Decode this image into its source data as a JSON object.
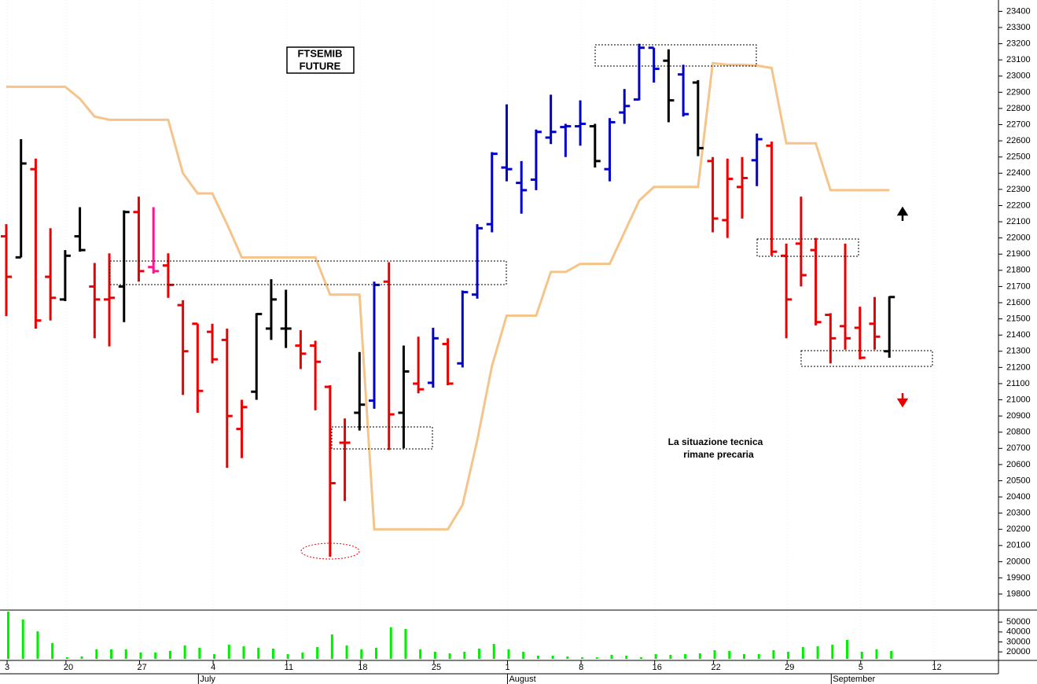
{
  "chart_data": {
    "type": "ohlc",
    "title_lines": [
      "FTSEMIB",
      "FUTURE"
    ],
    "annotation_lines": [
      "La situazione tecnica",
      "rimane precaria"
    ],
    "annotation_color": "#ee0000",
    "categories": [
      "3",
      null,
      null,
      null,
      "20",
      null,
      null,
      null,
      null,
      "27",
      null,
      null,
      null,
      null,
      "4",
      null,
      null,
      null,
      null,
      "11",
      null,
      null,
      null,
      null,
      "18",
      null,
      null,
      null,
      null,
      "25",
      null,
      null,
      null,
      null,
      "1",
      null,
      null,
      null,
      null,
      "8",
      null,
      null,
      null,
      null,
      "16",
      null,
      null,
      null,
      "22",
      null,
      null,
      null,
      null,
      "29",
      null,
      null,
      null,
      null,
      "5",
      null,
      null,
      null,
      null,
      "12"
    ],
    "month_labels": [
      null,
      null,
      null,
      null,
      null,
      null,
      null,
      null,
      null,
      null,
      null,
      null,
      null,
      "July",
      null,
      null,
      null,
      null,
      null,
      null,
      null,
      null,
      null,
      null,
      null,
      null,
      null,
      null,
      null,
      null,
      null,
      null,
      null,
      null,
      "August",
      null,
      null,
      null,
      null,
      null,
      null,
      null,
      null,
      null,
      null,
      null,
      null,
      null,
      null,
      null,
      null,
      null,
      null,
      null,
      null,
      null,
      "September",
      null,
      null,
      null,
      null,
      null,
      null,
      null
    ],
    "open": [
      22010,
      21880,
      22425,
      21760,
      21620,
      22010,
      21700,
      21620,
      21700,
      22160,
      21820,
      21830,
      21585,
      21470,
      21420,
      21370,
      20820,
      21050,
      21440,
      21440,
      21335,
      21335,
      21080,
      20735,
      20920,
      20995,
      21730,
      20920,
      21100,
      21105,
      21345,
      21225,
      21650,
      22085,
      22435,
      22340,
      22360,
      22620,
      22685,
      22690,
      22690,
      22425,
      22775,
      22855,
      23175,
      23095,
      23010,
      22960,
      22475,
      22110,
      22315,
      22480,
      22570,
      21890,
      21965,
      21925,
      21525,
      21455,
      21445,
      21470,
      21300,
      null,
      null,
      null
    ],
    "high": [
      22085,
      22610,
      22490,
      22060,
      21925,
      22190,
      21845,
      21905,
      22170,
      22255,
      22190,
      21905,
      21615,
      21470,
      21470,
      21440,
      21000,
      21535,
      21745,
      21680,
      21430,
      21365,
      21090,
      20885,
      21295,
      21730,
      21850,
      21335,
      21390,
      21445,
      21380,
      21675,
      22085,
      22530,
      22825,
      22475,
      22670,
      22885,
      22705,
      22850,
      22705,
      22740,
      22920,
      23200,
      23175,
      23165,
      23070,
      22975,
      22500,
      22490,
      22500,
      22645,
      22595,
      21965,
      22255,
      22000,
      21535,
      21965,
      21575,
      21635,
      21640,
      null,
      null,
      null
    ],
    "low": [
      21517,
      21880,
      21440,
      21490,
      21610,
      21915,
      21380,
      21330,
      21480,
      21730,
      21780,
      21630,
      21030,
      20920,
      21225,
      20580,
      20640,
      21000,
      21370,
      21320,
      21190,
      20935,
      20030,
      20375,
      20810,
      20945,
      20690,
      20700,
      21040,
      21075,
      21090,
      21200,
      21625,
      22035,
      22350,
      22150,
      22295,
      22580,
      22500,
      22570,
      22435,
      22350,
      22705,
      22850,
      22960,
      22715,
      22750,
      22505,
      22035,
      22000,
      22120,
      22320,
      21890,
      21380,
      21700,
      21460,
      21225,
      21310,
      21250,
      21310,
      21260,
      null,
      null,
      null
    ],
    "close": [
      21760,
      22460,
      21490,
      21630,
      21890,
      21925,
      21620,
      21630,
      22160,
      21795,
      21795,
      21710,
      21300,
      21055,
      21250,
      20900,
      20955,
      21530,
      21620,
      21440,
      21285,
      21235,
      20485,
      20735,
      20970,
      21710,
      20910,
      21175,
      21065,
      21380,
      21100,
      21665,
      22060,
      22520,
      22425,
      22295,
      22655,
      22655,
      22690,
      22705,
      22475,
      22715,
      22815,
      23175,
      23045,
      22850,
      22765,
      22555,
      22120,
      22365,
      22370,
      22610,
      21915,
      21620,
      21770,
      21480,
      21380,
      21380,
      21260,
      21390,
      21635,
      null,
      null,
      null
    ],
    "colors": [
      "#ee0000",
      "#000000",
      "#ee0000",
      "#ee0000",
      "#000000",
      "#000000",
      "#ee0000",
      "#ee0000",
      "#000000",
      "#ee0000",
      "#ff1493",
      "#ee0000",
      "#ee0000",
      "#ee0000",
      "#ee0000",
      "#ee0000",
      "#ee0000",
      "#000000",
      "#000000",
      "#000000",
      "#ee0000",
      "#ee0000",
      "#ee0000",
      "#ee0000",
      "#000000",
      "#0000cc",
      "#ee0000",
      "#000000",
      "#ee0000",
      "#0000cc",
      "#ee0000",
      "#0000cc",
      "#0000cc",
      "#0000cc",
      "#0000cc",
      "#0000cc",
      "#0000cc",
      "#0000cc",
      "#0000cc",
      "#0000cc",
      "#000000",
      "#0000cc",
      "#0000cc",
      "#0000cc",
      "#0000cc",
      "#000000",
      "#0000cc",
      "#000000",
      "#ee0000",
      "#ee0000",
      "#ee0000",
      "#0000cc",
      "#ee0000",
      "#ee0000",
      "#ee0000",
      "#ee0000",
      "#ee0000",
      "#ee0000",
      "#ee0000",
      "#ee0000",
      "#000000",
      null,
      null,
      null
    ],
    "line": {
      "color": "#f5c48a",
      "values": [
        22934,
        22934,
        22934,
        22934,
        22934,
        22860,
        22750,
        22730,
        22730,
        22730,
        22730,
        22730,
        22400,
        22275,
        22275,
        22085,
        21880,
        21880,
        21880,
        21880,
        21880,
        21880,
        21650,
        21650,
        21650,
        20200,
        20200,
        20200,
        20200,
        20200,
        20200,
        20350,
        20750,
        21210,
        21520,
        21520,
        21520,
        21790,
        21790,
        21840,
        21840,
        21840,
        22035,
        22230,
        22315,
        22315,
        22315,
        22315,
        23080,
        23070,
        23070,
        23065,
        23050,
        22585,
        22585,
        22585,
        22295,
        22295,
        22295,
        22295,
        22295,
        null,
        null,
        null
      ]
    },
    "ylim": [
      19730,
      23470
    ],
    "yticks": [
      19800,
      19900,
      20000,
      20100,
      20200,
      20300,
      20400,
      20500,
      20600,
      20700,
      20800,
      20900,
      21000,
      21100,
      21200,
      21300,
      21400,
      21500,
      21600,
      21700,
      21800,
      21900,
      22000,
      22100,
      22200,
      22300,
      22400,
      22500,
      22600,
      22700,
      22800,
      22900,
      23000,
      23100,
      23200,
      23300,
      23400
    ],
    "volume": {
      "color": "#00ee00",
      "values": [
        60400,
        52500,
        40700,
        28800,
        14600,
        15400,
        22500,
        22500,
        22500,
        19300,
        19300,
        20900,
        26400,
        24100,
        17700,
        27200,
        25600,
        24100,
        23300,
        17700,
        19300,
        24900,
        37500,
        26400,
        22500,
        24100,
        44600,
        43000,
        22500,
        20100,
        18500,
        20100,
        23300,
        28000,
        22500,
        20100,
        16200,
        16200,
        15400,
        14600,
        14600,
        17000,
        16200,
        14600,
        17700,
        17000,
        17700,
        18500,
        21700,
        20900,
        17700,
        17700,
        21700,
        20100,
        24900,
        25600,
        27200,
        32000,
        20100,
        22500,
        20900,
        null,
        null,
        null
      ],
      "ylim": [
        13000,
        62000
      ],
      "yticks": [
        20000,
        30000,
        40000,
        50000
      ]
    }
  }
}
